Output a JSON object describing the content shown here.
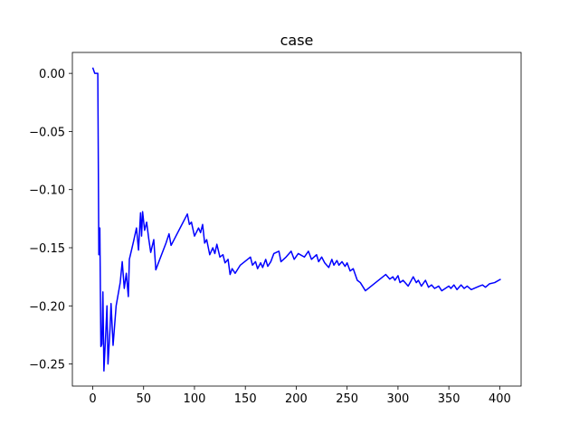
{
  "chart_data": {
    "type": "line",
    "title": "case",
    "x": [
      0,
      2,
      5,
      6,
      7,
      8,
      9,
      10,
      11,
      13,
      14,
      15,
      17,
      18,
      20,
      23,
      27,
      29,
      31,
      33,
      35,
      36,
      40,
      43,
      45,
      47,
      48,
      49,
      51,
      53,
      55,
      57,
      60,
      62,
      65,
      72,
      75,
      77,
      93,
      95,
      97,
      100,
      104,
      106,
      108,
      110,
      112,
      115,
      118,
      120,
      122,
      125,
      128,
      130,
      133,
      135,
      137,
      140,
      145,
      155,
      157,
      160,
      162,
      165,
      167,
      170,
      172,
      175,
      178,
      183,
      185,
      190,
      195,
      198,
      202,
      208,
      212,
      215,
      220,
      222,
      225,
      228,
      232,
      235,
      237,
      240,
      242,
      245,
      248,
      250,
      253,
      256,
      260,
      263,
      268,
      288,
      292,
      295,
      297,
      300,
      302,
      305,
      310,
      315,
      318,
      320,
      323,
      327,
      330,
      333,
      336,
      340,
      343,
      350,
      352,
      355,
      358,
      362,
      365,
      368,
      372,
      380,
      383,
      386,
      390,
      395,
      401
    ],
    "series": [
      {
        "color": "#0000ff",
        "values": [
          0.005,
          0.0,
          0.0,
          -0.156,
          -0.133,
          -0.235,
          -0.233,
          -0.188,
          -0.256,
          -0.22,
          -0.2,
          -0.25,
          -0.22,
          -0.198,
          -0.234,
          -0.2,
          -0.18,
          -0.162,
          -0.185,
          -0.172,
          -0.192,
          -0.16,
          -0.145,
          -0.133,
          -0.152,
          -0.12,
          -0.14,
          -0.119,
          -0.135,
          -0.128,
          -0.142,
          -0.154,
          -0.143,
          -0.169,
          -0.162,
          -0.146,
          -0.138,
          -0.148,
          -0.121,
          -0.13,
          -0.128,
          -0.14,
          -0.133,
          -0.137,
          -0.13,
          -0.146,
          -0.143,
          -0.156,
          -0.15,
          -0.155,
          -0.147,
          -0.158,
          -0.156,
          -0.163,
          -0.16,
          -0.173,
          -0.168,
          -0.172,
          -0.165,
          -0.158,
          -0.165,
          -0.162,
          -0.168,
          -0.163,
          -0.167,
          -0.16,
          -0.166,
          -0.162,
          -0.155,
          -0.153,
          -0.162,
          -0.158,
          -0.153,
          -0.16,
          -0.155,
          -0.158,
          -0.153,
          -0.16,
          -0.156,
          -0.162,
          -0.158,
          -0.163,
          -0.167,
          -0.16,
          -0.165,
          -0.161,
          -0.165,
          -0.162,
          -0.166,
          -0.163,
          -0.17,
          -0.168,
          -0.178,
          -0.18,
          -0.187,
          -0.173,
          -0.177,
          -0.175,
          -0.178,
          -0.174,
          -0.18,
          -0.178,
          -0.183,
          -0.175,
          -0.18,
          -0.178,
          -0.183,
          -0.178,
          -0.184,
          -0.182,
          -0.185,
          -0.183,
          -0.187,
          -0.183,
          -0.185,
          -0.182,
          -0.186,
          -0.182,
          -0.185,
          -0.183,
          -0.186,
          -0.183,
          -0.182,
          -0.184,
          -0.181,
          -0.18,
          -0.177
        ]
      }
    ],
    "xlim": [
      -20,
      421
    ],
    "xticks": [
      0,
      50,
      100,
      150,
      200,
      250,
      300,
      350,
      400
    ],
    "ylim": [
      -0.269,
      0.018
    ],
    "yticks": [
      {
        "value": 0,
        "label": "0.00"
      },
      {
        "value": -0.05,
        "label": "−0.05"
      },
      {
        "value": -0.1,
        "label": "−0.10"
      },
      {
        "value": -0.15,
        "label": "−0.15"
      },
      {
        "value": -0.2,
        "label": "−0.20"
      },
      {
        "value": -0.25,
        "label": "−0.25"
      }
    ],
    "grid": false
  }
}
